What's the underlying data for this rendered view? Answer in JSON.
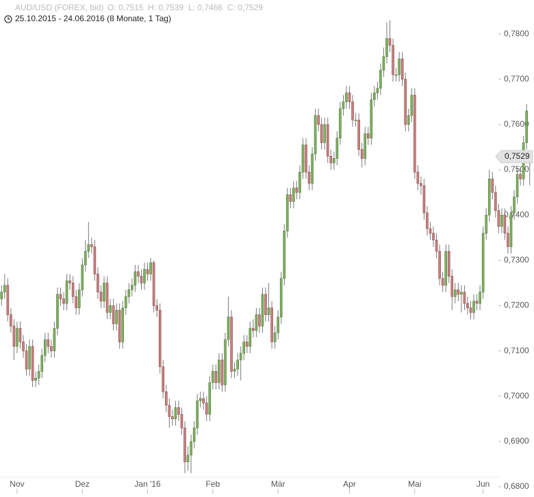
{
  "chart_data": {
    "type": "candlestick",
    "title": "AUD/USD (FOREX, bid)",
    "quote": [
      "O: 0,7515",
      "H: 0,7539",
      "L: 0,7466",
      "C: 0,7529"
    ],
    "subtitle": "25.10.2015 - 24.06.2016 (8 Monate, 1 Tag)",
    "last_label": "0,7529",
    "up_color": "#80b060",
    "down_color": "#c98080",
    "xlim": [
      -0.5,
      170.5
    ],
    "xticks": [
      {
        "value": 5,
        "label": "Nov"
      },
      {
        "value": 26,
        "label": "Dez"
      },
      {
        "value": 47,
        "label": "Jan '16"
      },
      {
        "value": 68,
        "label": "Feb"
      },
      {
        "value": 89,
        "label": "Mär"
      },
      {
        "value": 112,
        "label": "Apr"
      },
      {
        "value": 133,
        "label": "Mai"
      },
      {
        "value": 155,
        "label": "Jun"
      }
    ],
    "ylim": [
      0.6785,
      0.7875
    ],
    "yticks": [
      {
        "value": 0.68,
        "label": "0,6800"
      },
      {
        "value": 0.69,
        "label": "0,6900"
      },
      {
        "value": 0.7,
        "label": "0,7000"
      },
      {
        "value": 0.71,
        "label": "0,7100"
      },
      {
        "value": 0.72,
        "label": "0,7200"
      },
      {
        "value": 0.73,
        "label": "0,7300"
      },
      {
        "value": 0.74,
        "label": "0,7400"
      },
      {
        "value": 0.75,
        "label": "0,7500"
      },
      {
        "value": 0.76,
        "label": "0,7600"
      },
      {
        "value": 0.77,
        "label": "0,7700"
      },
      {
        "value": 0.78,
        "label": "0,7800"
      }
    ],
    "open": [
      0.7215,
      0.723,
      0.7245,
      0.718,
      0.7155,
      0.711,
      0.715,
      0.712,
      0.71,
      0.706,
      0.711,
      0.7035,
      0.704,
      0.7055,
      0.709,
      0.7125,
      0.711,
      0.71,
      0.715,
      0.7225,
      0.7215,
      0.7205,
      0.7255,
      0.725,
      0.722,
      0.7195,
      0.7235,
      0.729,
      0.732,
      0.7335,
      0.733,
      0.727,
      0.723,
      0.721,
      0.725,
      0.7185,
      0.72,
      0.716,
      0.719,
      0.712,
      0.7195,
      0.722,
      0.7235,
      0.7245,
      0.7275,
      0.7265,
      0.725,
      0.728,
      0.727,
      0.7295,
      0.72,
      0.719,
      0.7065,
      0.701,
      0.698,
      0.6955,
      0.695,
      0.6975,
      0.696,
      0.693,
      0.6855,
      0.687,
      0.69,
      0.693,
      0.699,
      0.6995,
      0.6985,
      0.696,
      0.703,
      0.7055,
      0.703,
      0.708,
      0.7025,
      0.7125,
      0.7175,
      0.7055,
      0.706,
      0.708,
      0.7095,
      0.712,
      0.711,
      0.715,
      0.7145,
      0.718,
      0.7155,
      0.7225,
      0.718,
      0.7195,
      0.712,
      0.714,
      0.7175,
      0.726,
      0.7365,
      0.7445,
      0.743,
      0.746,
      0.745,
      0.7495,
      0.7555,
      0.7495,
      0.747,
      0.7535,
      0.762,
      0.76,
      0.756,
      0.76,
      0.753,
      0.7515,
      0.7525,
      0.757,
      0.7635,
      0.765,
      0.767,
      0.765,
      0.761,
      0.761,
      0.7545,
      0.7525,
      0.758,
      0.757,
      0.7655,
      0.767,
      0.768,
      0.772,
      0.775,
      0.779,
      0.7775,
      0.771,
      0.771,
      0.7745,
      0.77,
      0.76,
      0.762,
      0.7665,
      0.7495,
      0.747,
      0.7465,
      0.7405,
      0.737,
      0.736,
      0.7345,
      0.732,
      0.726,
      0.7245,
      0.732,
      0.7265,
      0.722,
      0.7235,
      0.7225,
      0.723,
      0.7205,
      0.7195,
      0.7185,
      0.721,
      0.7205,
      0.723,
      0.736,
      0.74,
      0.748,
      0.745,
      0.741,
      0.7375,
      0.74,
      0.736,
      0.733,
      0.7405,
      0.744,
      0.749,
      0.748,
      0.756,
      0.7515
    ],
    "high": [
      0.7245,
      0.727,
      0.726,
      0.7195,
      0.717,
      0.7165,
      0.7165,
      0.7135,
      0.7115,
      0.7125,
      0.7125,
      0.7055,
      0.707,
      0.7105,
      0.714,
      0.714,
      0.7125,
      0.7165,
      0.724,
      0.724,
      0.723,
      0.727,
      0.727,
      0.7265,
      0.7235,
      0.725,
      0.7305,
      0.7345,
      0.7385,
      0.735,
      0.7345,
      0.7285,
      0.7245,
      0.7265,
      0.7265,
      0.7215,
      0.7215,
      0.7205,
      0.7205,
      0.721,
      0.7235,
      0.725,
      0.726,
      0.729,
      0.729,
      0.728,
      0.7295,
      0.7295,
      0.7305,
      0.73,
      0.7215,
      0.7205,
      0.708,
      0.7025,
      0.6995,
      0.697,
      0.699,
      0.699,
      0.6975,
      0.6945,
      0.689,
      0.6915,
      0.6945,
      0.7005,
      0.701,
      0.701,
      0.7,
      0.7045,
      0.707,
      0.707,
      0.7095,
      0.7095,
      0.714,
      0.722,
      0.719,
      0.7075,
      0.7095,
      0.711,
      0.7135,
      0.7135,
      0.7165,
      0.717,
      0.7195,
      0.7195,
      0.724,
      0.724,
      0.725,
      0.721,
      0.7155,
      0.719,
      0.7275,
      0.738,
      0.746,
      0.746,
      0.7475,
      0.7475,
      0.751,
      0.757,
      0.757,
      0.751,
      0.755,
      0.7635,
      0.7635,
      0.7615,
      0.7615,
      0.7615,
      0.7545,
      0.754,
      0.7585,
      0.765,
      0.7665,
      0.7685,
      0.7685,
      0.7665,
      0.7625,
      0.7625,
      0.756,
      0.7595,
      0.7595,
      0.767,
      0.7685,
      0.7695,
      0.7735,
      0.777,
      0.7825,
      0.783,
      0.779,
      0.7725,
      0.776,
      0.776,
      0.7715,
      0.7635,
      0.768,
      0.768,
      0.751,
      0.7485,
      0.748,
      0.742,
      0.7385,
      0.7375,
      0.736,
      0.7335,
      0.7275,
      0.7335,
      0.7335,
      0.728,
      0.725,
      0.725,
      0.7245,
      0.7245,
      0.722,
      0.721,
      0.7225,
      0.7225,
      0.7245,
      0.7375,
      0.7415,
      0.75,
      0.7495,
      0.7465,
      0.7425,
      0.7415,
      0.7415,
      0.7375,
      0.742,
      0.7455,
      0.7505,
      0.7505,
      0.7575,
      0.7645,
      0.7539
    ],
    "low": [
      0.72,
      0.7215,
      0.7165,
      0.714,
      0.708,
      0.7095,
      0.7105,
      0.7085,
      0.7045,
      0.7045,
      0.702,
      0.702,
      0.7025,
      0.704,
      0.7075,
      0.7095,
      0.7085,
      0.7085,
      0.7135,
      0.72,
      0.719,
      0.719,
      0.7235,
      0.7205,
      0.718,
      0.718,
      0.722,
      0.7275,
      0.7305,
      0.7315,
      0.7255,
      0.7215,
      0.7195,
      0.7195,
      0.717,
      0.717,
      0.7145,
      0.7145,
      0.7105,
      0.7105,
      0.718,
      0.7205,
      0.722,
      0.723,
      0.725,
      0.7235,
      0.7235,
      0.7255,
      0.7255,
      0.7185,
      0.7175,
      0.705,
      0.6995,
      0.6965,
      0.693,
      0.6935,
      0.6935,
      0.6945,
      0.6915,
      0.683,
      0.6835,
      0.683,
      0.6885,
      0.6915,
      0.6975,
      0.697,
      0.6945,
      0.6945,
      0.7015,
      0.7015,
      0.7015,
      0.701,
      0.701,
      0.711,
      0.704,
      0.704,
      0.7045,
      0.7035,
      0.708,
      0.7095,
      0.7095,
      0.713,
      0.713,
      0.714,
      0.714,
      0.7165,
      0.7165,
      0.7105,
      0.7105,
      0.7125,
      0.716,
      0.7245,
      0.735,
      0.7415,
      0.7415,
      0.7435,
      0.7435,
      0.748,
      0.748,
      0.7455,
      0.7455,
      0.752,
      0.7585,
      0.7545,
      0.7545,
      0.7515,
      0.75,
      0.75,
      0.751,
      0.7555,
      0.762,
      0.7635,
      0.7635,
      0.7595,
      0.7595,
      0.753,
      0.7505,
      0.751,
      0.7555,
      0.7555,
      0.764,
      0.7655,
      0.7665,
      0.7705,
      0.7735,
      0.776,
      0.7695,
      0.7695,
      0.7695,
      0.7685,
      0.7585,
      0.7585,
      0.7605,
      0.748,
      0.7455,
      0.7445,
      0.739,
      0.7355,
      0.7345,
      0.733,
      0.7305,
      0.7245,
      0.723,
      0.723,
      0.725,
      0.719,
      0.7205,
      0.721,
      0.7185,
      0.719,
      0.718,
      0.717,
      0.717,
      0.719,
      0.719,
      0.7215,
      0.7345,
      0.7385,
      0.7435,
      0.7395,
      0.736,
      0.736,
      0.7345,
      0.7315,
      0.7315,
      0.739,
      0.7425,
      0.7465,
      0.7465,
      0.7545,
      0.7466
    ],
    "close": [
      0.723,
      0.7245,
      0.718,
      0.7155,
      0.711,
      0.715,
      0.712,
      0.71,
      0.706,
      0.711,
      0.7035,
      0.704,
      0.7055,
      0.709,
      0.7125,
      0.711,
      0.71,
      0.715,
      0.7225,
      0.7215,
      0.7205,
      0.7255,
      0.725,
      0.722,
      0.7195,
      0.7235,
      0.729,
      0.732,
      0.7335,
      0.733,
      0.727,
      0.723,
      0.721,
      0.725,
      0.7185,
      0.72,
      0.716,
      0.719,
      0.712,
      0.7195,
      0.722,
      0.7235,
      0.7245,
      0.7275,
      0.7265,
      0.725,
      0.728,
      0.727,
      0.7295,
      0.72,
      0.719,
      0.7065,
      0.701,
      0.698,
      0.6955,
      0.695,
      0.6975,
      0.696,
      0.693,
      0.6855,
      0.687,
      0.69,
      0.693,
      0.699,
      0.6995,
      0.6985,
      0.696,
      0.703,
      0.7055,
      0.703,
      0.708,
      0.7025,
      0.7125,
      0.7175,
      0.7055,
      0.706,
      0.708,
      0.7095,
      0.712,
      0.711,
      0.715,
      0.7145,
      0.718,
      0.7155,
      0.7225,
      0.718,
      0.7195,
      0.712,
      0.714,
      0.7175,
      0.726,
      0.7365,
      0.7445,
      0.743,
      0.746,
      0.745,
      0.7495,
      0.7555,
      0.7495,
      0.747,
      0.7535,
      0.762,
      0.76,
      0.756,
      0.76,
      0.753,
      0.7515,
      0.7525,
      0.757,
      0.7635,
      0.765,
      0.767,
      0.765,
      0.761,
      0.761,
      0.7545,
      0.7525,
      0.758,
      0.757,
      0.7655,
      0.767,
      0.768,
      0.772,
      0.775,
      0.779,
      0.7775,
      0.771,
      0.771,
      0.7745,
      0.77,
      0.76,
      0.762,
      0.7665,
      0.7495,
      0.747,
      0.7465,
      0.7405,
      0.737,
      0.736,
      0.7345,
      0.732,
      0.726,
      0.7245,
      0.732,
      0.7265,
      0.722,
      0.7235,
      0.7225,
      0.723,
      0.7205,
      0.7195,
      0.7185,
      0.721,
      0.7205,
      0.723,
      0.736,
      0.74,
      0.748,
      0.745,
      0.741,
      0.7375,
      0.74,
      0.736,
      0.733,
      0.7405,
      0.744,
      0.749,
      0.748,
      0.756,
      0.763,
      0.7529
    ]
  }
}
